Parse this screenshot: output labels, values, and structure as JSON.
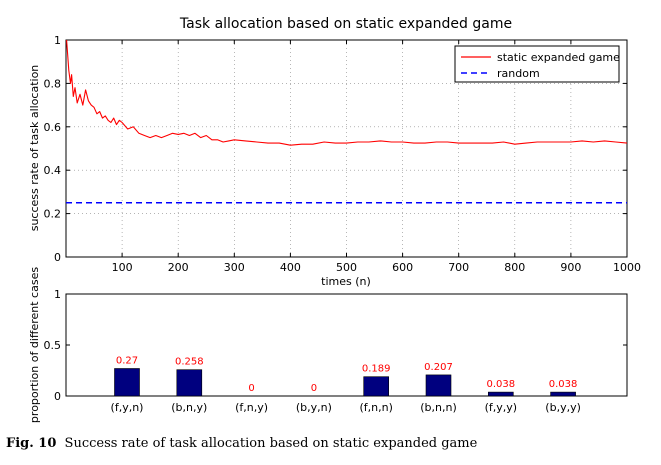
{
  "figure": {
    "caption_label": "Fig. 10",
    "caption_text": "Success rate of task allocation based on static expanded game"
  },
  "chart_data": [
    {
      "type": "line",
      "title": "Task allocation based on static expanded game",
      "xlabel": "times (n)",
      "ylabel": "success rate of task allocation",
      "xlim": [
        0,
        1000
      ],
      "ylim": [
        0,
        1
      ],
      "xticks": [
        100,
        200,
        300,
        400,
        500,
        600,
        700,
        800,
        900,
        1000
      ],
      "yticks": [
        0,
        0.2,
        0.4,
        0.6,
        0.8,
        1
      ],
      "grid": true,
      "legend": "top-right",
      "series": [
        {
          "name": "static expanded game",
          "color": "#ff0000",
          "style": "solid",
          "x": [
            1,
            3,
            5,
            8,
            10,
            13,
            16,
            20,
            25,
            30,
            35,
            40,
            45,
            50,
            55,
            60,
            65,
            70,
            75,
            80,
            85,
            90,
            95,
            100,
            110,
            120,
            130,
            140,
            150,
            160,
            170,
            180,
            190,
            200,
            210,
            220,
            230,
            240,
            250,
            260,
            270,
            280,
            290,
            300,
            320,
            340,
            360,
            380,
            400,
            420,
            440,
            460,
            480,
            500,
            520,
            540,
            560,
            580,
            600,
            620,
            640,
            660,
            680,
            700,
            720,
            740,
            760,
            780,
            800,
            820,
            840,
            860,
            880,
            900,
            920,
            940,
            960,
            980,
            1000
          ],
          "values": [
            1.0,
            0.93,
            0.86,
            0.8,
            0.84,
            0.74,
            0.78,
            0.71,
            0.75,
            0.7,
            0.77,
            0.72,
            0.7,
            0.69,
            0.66,
            0.67,
            0.64,
            0.65,
            0.63,
            0.62,
            0.64,
            0.61,
            0.63,
            0.62,
            0.59,
            0.6,
            0.57,
            0.56,
            0.55,
            0.56,
            0.55,
            0.56,
            0.57,
            0.565,
            0.57,
            0.56,
            0.57,
            0.55,
            0.56,
            0.54,
            0.54,
            0.53,
            0.535,
            0.54,
            0.535,
            0.53,
            0.525,
            0.525,
            0.515,
            0.52,
            0.52,
            0.53,
            0.525,
            0.525,
            0.53,
            0.53,
            0.535,
            0.53,
            0.53,
            0.525,
            0.525,
            0.53,
            0.53,
            0.525,
            0.525,
            0.525,
            0.525,
            0.53,
            0.52,
            0.525,
            0.53,
            0.53,
            0.53,
            0.53,
            0.535,
            0.53,
            0.535,
            0.53,
            0.525
          ]
        },
        {
          "name": "random",
          "color": "#0000ff",
          "style": "dashed",
          "x": [
            0,
            1000
          ],
          "values": [
            0.25,
            0.25
          ]
        }
      ]
    },
    {
      "type": "bar",
      "ylabel": "proportion of different cases",
      "ylim": [
        0,
        1
      ],
      "yticks": [
        0,
        0.5,
        1
      ],
      "grid": false,
      "bar_color": "#00007f",
      "label_color": "#ff0000",
      "categories": [
        "(f,y,n)",
        "(b,n,y)",
        "(f,n,y)",
        "(b,y,n)",
        "(f,n,n)",
        "(b,n,n)",
        "(f,y,y)",
        "(b,y,y)"
      ],
      "values": [
        0.27,
        0.258,
        0,
        0,
        0.189,
        0.207,
        0.038,
        0.038
      ],
      "data_labels": [
        "0.27",
        "0.258",
        "0",
        "0",
        "0.189",
        "0.207",
        "0.038",
        "0.038"
      ]
    }
  ]
}
